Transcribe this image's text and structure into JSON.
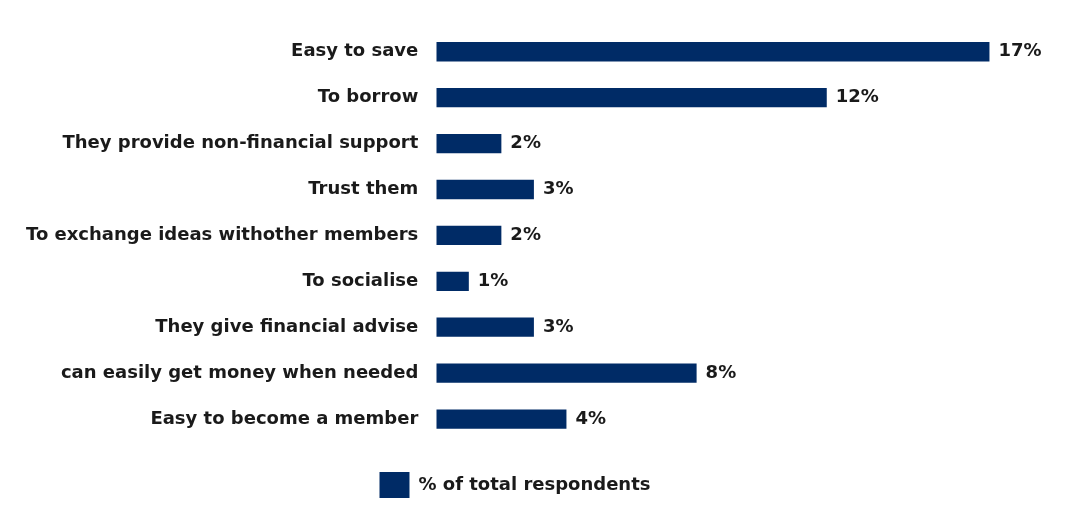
{
  "chart_data": {
    "type": "bar",
    "orientation": "horizontal",
    "categories": [
      "Easy to save",
      "To borrow",
      "They provide non-financial support",
      "Trust them",
      "To exchange ideas withother members",
      "To socialise",
      "They give financial advise",
      "can easily get money when needed",
      "Easy to become a member"
    ],
    "series": [
      {
        "name": "% of total respondents",
        "color": "#002b66",
        "values": [
          17,
          12,
          2,
          3,
          2,
          1,
          3,
          8,
          4
        ],
        "value_labels": [
          "17%",
          "12%",
          "2%",
          "3%",
          "2%",
          "1%",
          "3%",
          "8%",
          "4%"
        ]
      }
    ],
    "legend": "bottom",
    "grid": false,
    "tick_labels": "y"
  }
}
